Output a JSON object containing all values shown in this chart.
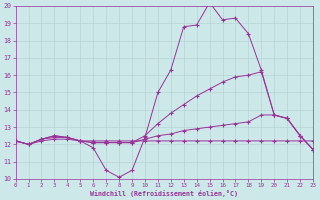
{
  "background_color": "#cce8e8",
  "line_color": "#993399",
  "xlabel": "Windchill (Refroidissement éolien,°C)",
  "xlim": [
    0,
    23
  ],
  "ylim": [
    10,
    20
  ],
  "yticks": [
    10,
    11,
    12,
    13,
    14,
    15,
    16,
    17,
    18,
    19,
    20
  ],
  "xticks": [
    0,
    1,
    2,
    3,
    4,
    5,
    6,
    7,
    8,
    9,
    10,
    11,
    12,
    13,
    14,
    15,
    16,
    17,
    18,
    19,
    20,
    21,
    22,
    23
  ],
  "series": [
    {
      "x": [
        0,
        1,
        2,
        3,
        4,
        5,
        6,
        7,
        8,
        9,
        10,
        11,
        12,
        13,
        14,
        15,
        16,
        17,
        18,
        19,
        20,
        21,
        22,
        23
      ],
      "y": [
        12.2,
        12.0,
        12.3,
        12.5,
        12.4,
        12.2,
        11.8,
        10.5,
        10.1,
        10.5,
        12.4,
        15.0,
        16.3,
        18.8,
        18.9,
        20.2,
        19.2,
        19.3,
        18.4,
        16.3,
        13.7,
        13.5,
        12.5,
        11.7
      ]
    },
    {
      "x": [
        0,
        1,
        2,
        3,
        4,
        5,
        6,
        7,
        8,
        9,
        10,
        11,
        12,
        13,
        14,
        15,
        16,
        17,
        18,
        19,
        20,
        21,
        22,
        23
      ],
      "y": [
        12.2,
        12.0,
        12.2,
        12.3,
        12.3,
        12.2,
        12.2,
        12.2,
        12.2,
        12.2,
        12.2,
        12.2,
        12.2,
        12.2,
        12.2,
        12.2,
        12.2,
        12.2,
        12.2,
        12.2,
        12.2,
        12.2,
        12.2,
        12.2
      ]
    },
    {
      "x": [
        0,
        1,
        2,
        3,
        4,
        5,
        6,
        7,
        8,
        9,
        10,
        11,
        12,
        13,
        14,
        15,
        16,
        17,
        18,
        19,
        20,
        21,
        22,
        23
      ],
      "y": [
        12.2,
        12.0,
        12.3,
        12.5,
        12.4,
        12.2,
        12.1,
        12.1,
        12.1,
        12.1,
        12.5,
        13.2,
        13.8,
        14.3,
        14.8,
        15.2,
        15.6,
        15.9,
        16.0,
        16.2,
        13.7,
        13.5,
        12.5,
        11.7
      ]
    },
    {
      "x": [
        0,
        1,
        2,
        3,
        4,
        5,
        6,
        7,
        8,
        9,
        10,
        11,
        12,
        13,
        14,
        15,
        16,
        17,
        18,
        19,
        20,
        21,
        22,
        23
      ],
      "y": [
        12.2,
        12.0,
        12.3,
        12.4,
        12.4,
        12.2,
        12.1,
        12.1,
        12.1,
        12.1,
        12.3,
        12.5,
        12.6,
        12.8,
        12.9,
        13.0,
        13.1,
        13.2,
        13.3,
        13.7,
        13.7,
        13.5,
        12.5,
        11.7
      ]
    }
  ]
}
